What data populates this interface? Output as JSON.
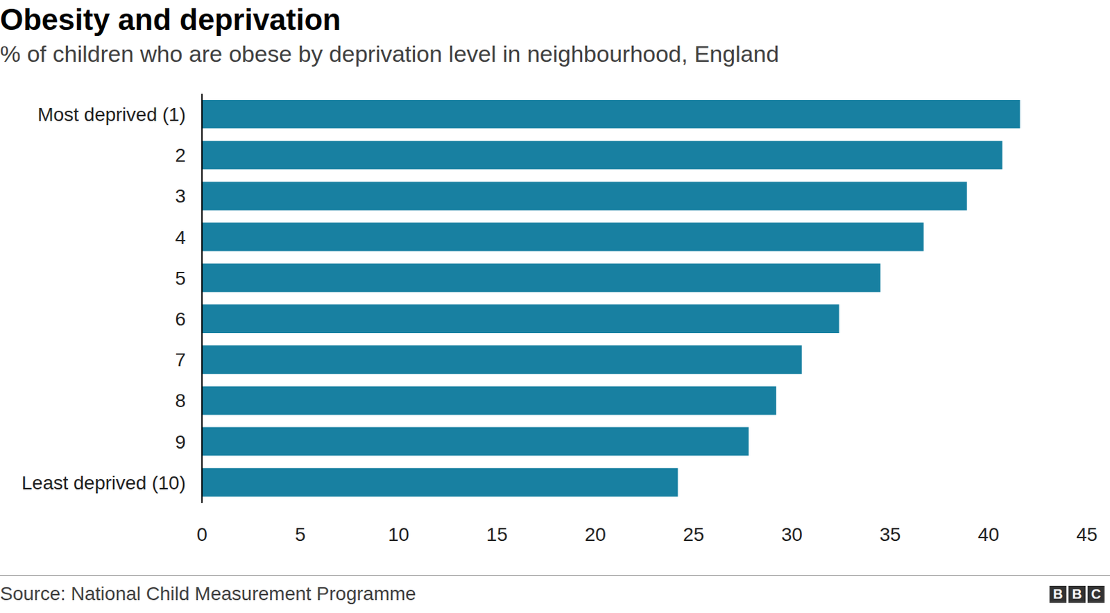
{
  "chart_data": {
    "type": "bar",
    "orientation": "horizontal",
    "title": "Obesity and deprivation",
    "subtitle": "% of children who are obese by deprivation level in neighbourhood, England",
    "source": "Source: National Child Measurement Programme",
    "logo": "BBC",
    "categories": [
      "Most deprived (1)",
      "2",
      "3",
      "4",
      "5",
      "6",
      "7",
      "8",
      "9",
      "Least deprived (10)"
    ],
    "values": [
      41.6,
      40.7,
      38.9,
      36.7,
      34.5,
      32.4,
      30.5,
      29.2,
      27.8,
      24.2
    ],
    "color": "#1880a1",
    "xlim": [
      0,
      45
    ],
    "xticks": [
      0,
      5,
      10,
      15,
      20,
      25,
      30,
      35,
      40,
      45
    ],
    "grid": false
  }
}
